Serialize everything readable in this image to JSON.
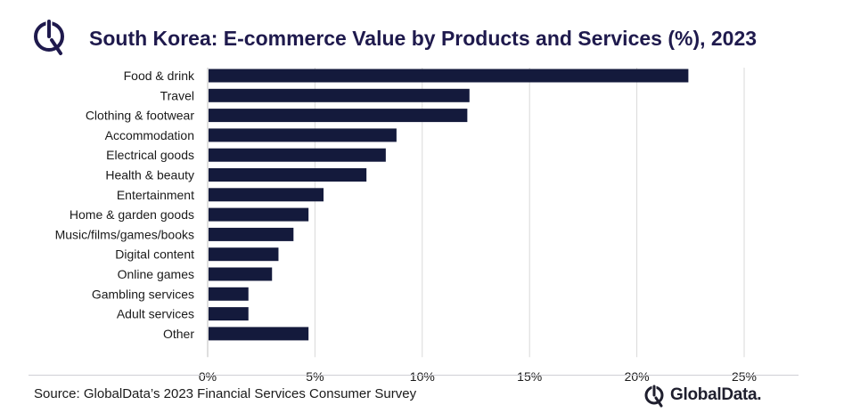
{
  "header": {
    "title": "South Korea: E-commerce Value by Products and Services (%), 2023",
    "logo_icon": "globaldata-logo-icon"
  },
  "footer": {
    "source": "Source: GlobalData’s 2023 Financial Services Consumer Survey",
    "brand_name": "GlobalData."
  },
  "colors": {
    "bar": "#141a3c",
    "title": "#1f1a4d",
    "grid": "#d9d9d9"
  },
  "chart_data": {
    "type": "bar",
    "orientation": "horizontal",
    "categories": [
      "Food & drink",
      "Travel",
      "Clothing & footwear",
      "Accommodation",
      "Electrical goods",
      "Health & beauty",
      "Entertainment",
      "Home & garden goods",
      "Music/films/games/books",
      "Digital content",
      "Online games",
      "Gambling services",
      "Adult services",
      "Other"
    ],
    "values": [
      22.4,
      12.2,
      12.1,
      8.8,
      8.3,
      7.4,
      5.4,
      4.7,
      4.0,
      3.3,
      3.0,
      1.9,
      1.9,
      4.7
    ],
    "x_ticks": [
      "0%",
      "5%",
      "10%",
      "15%",
      "20%",
      "25%"
    ],
    "xlim": [
      0,
      25
    ],
    "grid": true,
    "legend": "none"
  }
}
